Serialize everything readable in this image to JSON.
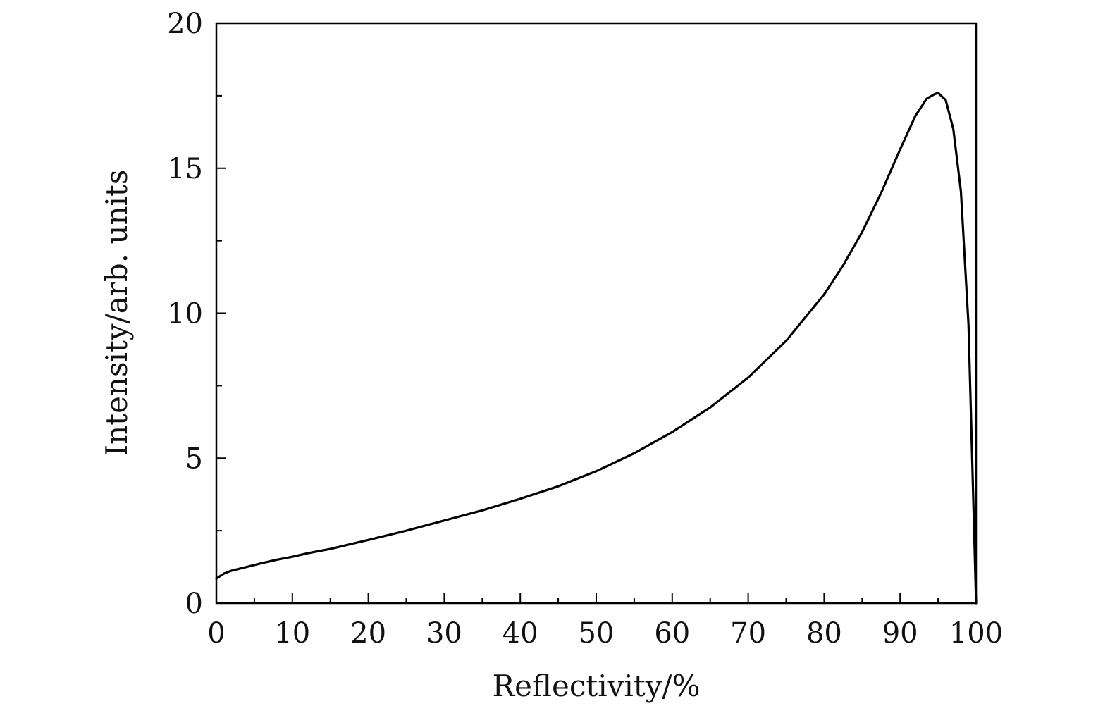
{
  "chart_data": {
    "type": "line",
    "title": "",
    "xlabel": "Reflectivity/%",
    "ylabel": "Intensity/arb. units",
    "xlim": [
      0,
      100
    ],
    "ylim": [
      0,
      20
    ],
    "x_ticks": [
      0,
      10,
      20,
      30,
      40,
      50,
      60,
      70,
      80,
      90,
      100
    ],
    "y_ticks": [
      0,
      5,
      10,
      15,
      20
    ],
    "grid": false,
    "line_color": "#000000",
    "series": [
      {
        "x": [
          0,
          1,
          2,
          4,
          6,
          8,
          10,
          12,
          15,
          20,
          25,
          30,
          35,
          40,
          45,
          50,
          55,
          60,
          65,
          70,
          75,
          80,
          82.5,
          85,
          87.5,
          90,
          92,
          93.5,
          94.5,
          95,
          96,
          97,
          98,
          99,
          100
        ],
        "y": [
          0.85,
          1.02,
          1.12,
          1.25,
          1.38,
          1.5,
          1.6,
          1.72,
          1.87,
          2.18,
          2.5,
          2.85,
          3.2,
          3.6,
          4.03,
          4.55,
          5.17,
          5.9,
          6.75,
          7.78,
          9.05,
          10.65,
          11.65,
          12.8,
          14.15,
          15.65,
          16.8,
          17.4,
          17.55,
          17.6,
          17.35,
          16.35,
          14.2,
          9.6,
          0.0
        ]
      }
    ]
  }
}
